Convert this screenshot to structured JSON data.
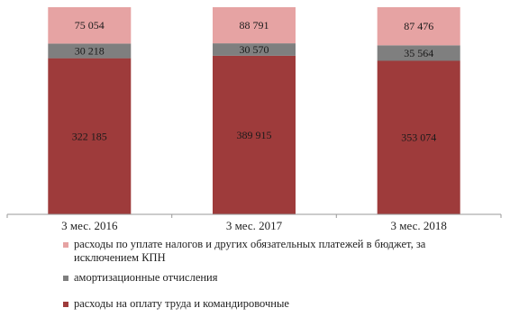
{
  "chart_data": {
    "type": "bar",
    "stacked": true,
    "categories": [
      "3 мес. 2016",
      "3 мес. 2017",
      "3 мес. 2018"
    ],
    "series": [
      {
        "name": "расходы на оплату труда и командировочные",
        "color": "#9e3b3b",
        "values": [
          322185,
          389915,
          353074
        ],
        "labels": [
          "322 185",
          "389 915",
          "353 074"
        ]
      },
      {
        "name": "амортизационные отчисления",
        "color": "#7f7f7f",
        "values": [
          30218,
          30570,
          35564
        ],
        "labels": [
          "30 218",
          "30 570",
          "35 564"
        ]
      },
      {
        "name": "расходы по уплате налогов и других обязательных платежей в бюджет, за исключением КПН",
        "color": "#e6a3a3",
        "values": [
          75054,
          88791,
          87476
        ],
        "labels": [
          "75 054",
          "88 791",
          "87 476"
        ]
      }
    ],
    "title": "",
    "xlabel": "",
    "ylabel": "",
    "stack_normalized": true,
    "grid": false,
    "legend_position": "bottom-left"
  },
  "legend_items": [
    {
      "label": "расходы по уплате налогов и других обязательных платежей в бюджет, за исключением КПН",
      "color": "#e6a3a3"
    },
    {
      "label": "амортизационные отчисления",
      "color": "#7f7f7f"
    },
    {
      "label": "расходы на оплату труда и командировочные",
      "color": "#9e3b3b"
    }
  ]
}
